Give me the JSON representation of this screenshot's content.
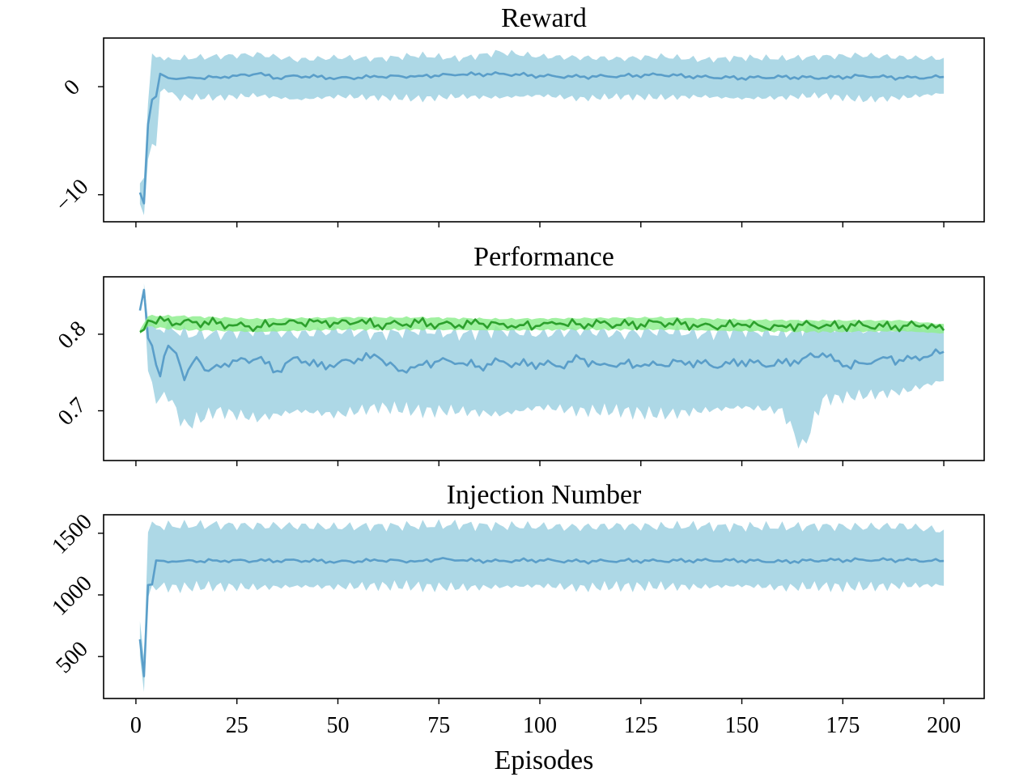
{
  "figure": {
    "xlabel": "Episodes",
    "x_ticks": [
      0,
      25,
      50,
      75,
      100,
      125,
      150,
      175,
      200
    ],
    "xlim": [
      -8,
      210
    ]
  },
  "colors": {
    "blue_line": "#5a9ec9",
    "blue_band": "#add8e6",
    "green_line": "#2ca02c",
    "green_band": "#90ee90"
  },
  "chart_data": [
    {
      "type": "line",
      "title": "Reward",
      "ylim": [
        -12.5,
        4.5
      ],
      "y_ticks": [
        0,
        -10
      ],
      "y_tick_labels": [
        "0",
        "−10"
      ],
      "grid": false,
      "series": [
        {
          "color": "blue",
          "points": [
            [
              1,
              -9.8
            ],
            [
              2,
              -10.8
            ],
            [
              3,
              -3.5
            ],
            [
              4,
              -1.2
            ],
            [
              5,
              -0.9
            ],
            [
              6,
              1.2
            ],
            [
              7,
              1.0
            ],
            [
              8,
              0.8
            ],
            [
              10,
              0.7
            ],
            [
              15,
              0.8
            ],
            [
              20,
              0.9
            ],
            [
              25,
              1.0
            ],
            [
              30,
              1.2
            ],
            [
              35,
              0.8
            ],
            [
              40,
              1.0
            ],
            [
              50,
              0.8
            ],
            [
              60,
              0.9
            ],
            [
              70,
              1.0
            ],
            [
              80,
              1.1
            ],
            [
              90,
              1.2
            ],
            [
              100,
              1.0
            ],
            [
              110,
              0.9
            ],
            [
              120,
              1.0
            ],
            [
              130,
              1.1
            ],
            [
              140,
              0.9
            ],
            [
              150,
              0.8
            ],
            [
              160,
              0.9
            ],
            [
              170,
              0.8
            ],
            [
              180,
              1.0
            ],
            [
              190,
              0.8
            ],
            [
              200,
              0.9
            ]
          ],
          "band": [
            [
              1,
              -11.0,
              -9.0
            ],
            [
              2,
              -11.8,
              -8.5
            ],
            [
              3,
              -6.5,
              -1.0
            ],
            [
              4,
              -6.0,
              2.5
            ],
            [
              5,
              -5.0,
              2.6
            ],
            [
              6,
              -0.5,
              2.8
            ],
            [
              8,
              -0.3,
              2.5
            ],
            [
              10,
              -1.0,
              2.6
            ],
            [
              20,
              -1.0,
              2.8
            ],
            [
              30,
              -0.8,
              3.0
            ],
            [
              40,
              -1.2,
              2.5
            ],
            [
              50,
              -0.9,
              2.7
            ],
            [
              60,
              -1.0,
              2.6
            ],
            [
              70,
              -1.1,
              2.9
            ],
            [
              80,
              -0.9,
              2.6
            ],
            [
              90,
              -1.0,
              3.2
            ],
            [
              100,
              -0.8,
              2.8
            ],
            [
              110,
              -1.1,
              2.7
            ],
            [
              120,
              -0.9,
              2.6
            ],
            [
              130,
              -1.0,
              2.8
            ],
            [
              140,
              -0.9,
              2.5
            ],
            [
              150,
              -1.1,
              2.7
            ],
            [
              160,
              -1.0,
              2.6
            ],
            [
              170,
              -0.8,
              2.8
            ],
            [
              180,
              -1.2,
              2.9
            ],
            [
              190,
              -1.0,
              2.7
            ],
            [
              200,
              -0.6,
              2.6
            ]
          ]
        }
      ]
    },
    {
      "type": "line",
      "title": "Performance",
      "ylim": [
        0.635,
        0.875
      ],
      "y_ticks": [
        0.8,
        0.7
      ],
      "y_tick_labels": [
        "0.8",
        "0.7"
      ],
      "grid": false,
      "series": [
        {
          "color": "blue",
          "points": [
            [
              1,
              0.831
            ],
            [
              2,
              0.858
            ],
            [
              3,
              0.795
            ],
            [
              4,
              0.785
            ],
            [
              5,
              0.76
            ],
            [
              6,
              0.745
            ],
            [
              8,
              0.785
            ],
            [
              10,
              0.775
            ],
            [
              12,
              0.74
            ],
            [
              15,
              0.77
            ],
            [
              18,
              0.752
            ],
            [
              20,
              0.76
            ],
            [
              25,
              0.765
            ],
            [
              30,
              0.768
            ],
            [
              35,
              0.752
            ],
            [
              40,
              0.77
            ],
            [
              45,
              0.758
            ],
            [
              50,
              0.762
            ],
            [
              55,
              0.768
            ],
            [
              60,
              0.77
            ],
            [
              65,
              0.752
            ],
            [
              70,
              0.76
            ],
            [
              75,
              0.765
            ],
            [
              80,
              0.762
            ],
            [
              85,
              0.758
            ],
            [
              90,
              0.765
            ],
            [
              95,
              0.76
            ],
            [
              100,
              0.762
            ],
            [
              105,
              0.758
            ],
            [
              110,
              0.768
            ],
            [
              115,
              0.76
            ],
            [
              120,
              0.762
            ],
            [
              125,
              0.758
            ],
            [
              130,
              0.76
            ],
            [
              135,
              0.765
            ],
            [
              140,
              0.762
            ],
            [
              145,
              0.758
            ],
            [
              150,
              0.765
            ],
            [
              155,
              0.76
            ],
            [
              160,
              0.762
            ],
            [
              165,
              0.768
            ],
            [
              170,
              0.775
            ],
            [
              175,
              0.758
            ],
            [
              180,
              0.762
            ],
            [
              185,
              0.77
            ],
            [
              190,
              0.765
            ],
            [
              195,
              0.77
            ],
            [
              200,
              0.777
            ]
          ],
          "band": [
            [
              1,
              0.822
            ],
            [
              2,
              0.848,
              0.866
            ],
            [
              3,
              0.755,
              0.825
            ],
            [
              4,
              0.73,
              0.815
            ],
            [
              5,
              0.715,
              0.805
            ],
            [
              8,
              0.72,
              0.81
            ],
            [
              12,
              0.68,
              0.8
            ],
            [
              20,
              0.7,
              0.8
            ],
            [
              30,
              0.69,
              0.805
            ],
            [
              40,
              0.7,
              0.8
            ],
            [
              50,
              0.695,
              0.805
            ],
            [
              60,
              0.705,
              0.8
            ],
            [
              70,
              0.7,
              0.805
            ],
            [
              80,
              0.7,
              0.8
            ],
            [
              90,
              0.695,
              0.805
            ],
            [
              100,
              0.705,
              0.8
            ],
            [
              110,
              0.7,
              0.805
            ],
            [
              120,
              0.7,
              0.8
            ],
            [
              130,
              0.695,
              0.805
            ],
            [
              140,
              0.7,
              0.8
            ],
            [
              150,
              0.705,
              0.805
            ],
            [
              160,
              0.7,
              0.8
            ],
            [
              165,
              0.65,
              0.81
            ],
            [
              170,
              0.715,
              0.812
            ],
            [
              180,
              0.72,
              0.805
            ],
            [
              190,
              0.725,
              0.808
            ],
            [
              200,
              0.74,
              0.81
            ]
          ]
        },
        {
          "color": "green",
          "points": [
            [
              1,
              0.803
            ],
            [
              2,
              0.806
            ],
            [
              3,
              0.818
            ],
            [
              5,
              0.814
            ],
            [
              8,
              0.82
            ],
            [
              10,
              0.814
            ],
            [
              15,
              0.816
            ],
            [
              20,
              0.814
            ],
            [
              25,
              0.812
            ],
            [
              30,
              0.81
            ],
            [
              35,
              0.813
            ],
            [
              40,
              0.815
            ],
            [
              45,
              0.818
            ],
            [
              50,
              0.814
            ],
            [
              55,
              0.816
            ],
            [
              60,
              0.812
            ],
            [
              65,
              0.814
            ],
            [
              70,
              0.815
            ],
            [
              75,
              0.813
            ],
            [
              80,
              0.812
            ],
            [
              85,
              0.814
            ],
            [
              90,
              0.813
            ],
            [
              95,
              0.812
            ],
            [
              100,
              0.811
            ],
            [
              105,
              0.814
            ],
            [
              110,
              0.813
            ],
            [
              115,
              0.815
            ],
            [
              120,
              0.812
            ],
            [
              125,
              0.813
            ],
            [
              130,
              0.815
            ],
            [
              135,
              0.813
            ],
            [
              140,
              0.812
            ],
            [
              145,
              0.811
            ],
            [
              150,
              0.812
            ],
            [
              155,
              0.81
            ],
            [
              160,
              0.811
            ],
            [
              165,
              0.812
            ],
            [
              170,
              0.81
            ],
            [
              175,
              0.811
            ],
            [
              180,
              0.812
            ],
            [
              185,
              0.81
            ],
            [
              190,
              0.811
            ],
            [
              195,
              0.812
            ],
            [
              200,
              0.805
            ]
          ],
          "band": [
            [
              1,
              0.8,
              0.806
            ],
            [
              3,
              0.81,
              0.824
            ],
            [
              10,
              0.806,
              0.824
            ],
            [
              30,
              0.803,
              0.82
            ],
            [
              50,
              0.806,
              0.822
            ],
            [
              70,
              0.806,
              0.822
            ],
            [
              90,
              0.805,
              0.82
            ],
            [
              110,
              0.806,
              0.821
            ],
            [
              130,
              0.806,
              0.822
            ],
            [
              150,
              0.804,
              0.819
            ],
            [
              170,
              0.803,
              0.818
            ],
            [
              190,
              0.804,
              0.818
            ],
            [
              200,
              0.801,
              0.813
            ]
          ]
        }
      ]
    },
    {
      "type": "line",
      "title": "Injection Number",
      "ylim": [
        160,
        1650
      ],
      "y_ticks": [
        1500,
        1000,
        500
      ],
      "y_tick_labels": [
        "1500",
        "1000",
        "500"
      ],
      "grid": false,
      "series": [
        {
          "color": "blue",
          "points": [
            [
              1,
              640
            ],
            [
              2,
              340
            ],
            [
              3,
              1080
            ],
            [
              4,
              1085
            ],
            [
              5,
              1280
            ],
            [
              7,
              1275
            ],
            [
              10,
              1270
            ],
            [
              20,
              1280
            ],
            [
              30,
              1275
            ],
            [
              40,
              1280
            ],
            [
              50,
              1270
            ],
            [
              60,
              1278
            ],
            [
              70,
              1275
            ],
            [
              75,
              1290
            ],
            [
              80,
              1280
            ],
            [
              90,
              1275
            ],
            [
              100,
              1282
            ],
            [
              110,
              1270
            ],
            [
              120,
              1278
            ],
            [
              130,
              1275
            ],
            [
              140,
              1280
            ],
            [
              150,
              1278
            ],
            [
              160,
              1270
            ],
            [
              170,
              1280
            ],
            [
              180,
              1285
            ],
            [
              190,
              1282
            ],
            [
              200,
              1275
            ]
          ],
          "band": [
            [
              1,
              480,
              780
            ],
            [
              2,
              220,
              480
            ],
            [
              3,
              1000,
              1560
            ],
            [
              5,
              1070,
              1560
            ],
            [
              10,
              1060,
              1560
            ],
            [
              20,
              1070,
              1570
            ],
            [
              30,
              1060,
              1560
            ],
            [
              40,
              1070,
              1560
            ],
            [
              50,
              1065,
              1550
            ],
            [
              60,
              1075,
              1560
            ],
            [
              70,
              1070,
              1560
            ],
            [
              80,
              1060,
              1570
            ],
            [
              90,
              1065,
              1560
            ],
            [
              100,
              1075,
              1555
            ],
            [
              110,
              1060,
              1550
            ],
            [
              120,
              1070,
              1560
            ],
            [
              130,
              1070,
              1555
            ],
            [
              140,
              1065,
              1560
            ],
            [
              150,
              1075,
              1555
            ],
            [
              160,
              1060,
              1550
            ],
            [
              170,
              1070,
              1560
            ],
            [
              180,
              1065,
              1550
            ],
            [
              190,
              1075,
              1560
            ],
            [
              200,
              1080,
              1520
            ]
          ]
        }
      ]
    }
  ]
}
